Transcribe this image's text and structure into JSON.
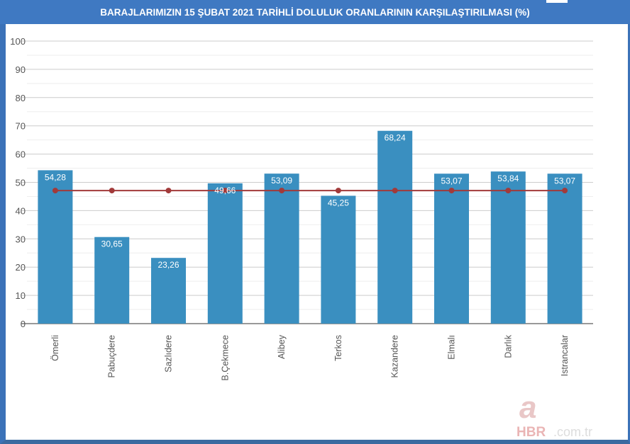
{
  "chart_data": {
    "type": "bar",
    "title": "BARAJLARIMIZIN 15 ŞUBAT 2021 TARİHLİ DOLULUK ORANLARININ KARŞILAŞTIRILMASI (%)",
    "categories": [
      "Ömerli",
      "Pabuçdere",
      "Sazlıdere",
      "B.Çekmece",
      "Alibey",
      "Terkos",
      "Kazandere",
      "Elmalı",
      "Darlık",
      "Istrancalar"
    ],
    "series": [
      {
        "type": "bar",
        "values": [
          54.28,
          30.65,
          23.26,
          49.66,
          53.09,
          45.25,
          68.24,
          53.07,
          53.84,
          53.07
        ],
        "labels": [
          "54,28",
          "30,65",
          "23,26",
          "49,66",
          "53,09",
          "45,25",
          "68,24",
          "53,07",
          "53,84",
          "53,07"
        ],
        "color": "#3a8fc0"
      },
      {
        "type": "line",
        "values": [
          47.1,
          47.1,
          47.1,
          47.1,
          47.1,
          47.1,
          47.1,
          47.1,
          47.1,
          47.1
        ],
        "color": "#a23a3a"
      }
    ],
    "yticks": [
      0,
      10,
      20,
      30,
      40,
      50,
      60,
      70,
      80,
      90,
      100
    ],
    "ylim": [
      0,
      100
    ],
    "grid": true,
    "xlabel": "",
    "ylabel": ""
  },
  "watermark": "a HBR.com.tr"
}
